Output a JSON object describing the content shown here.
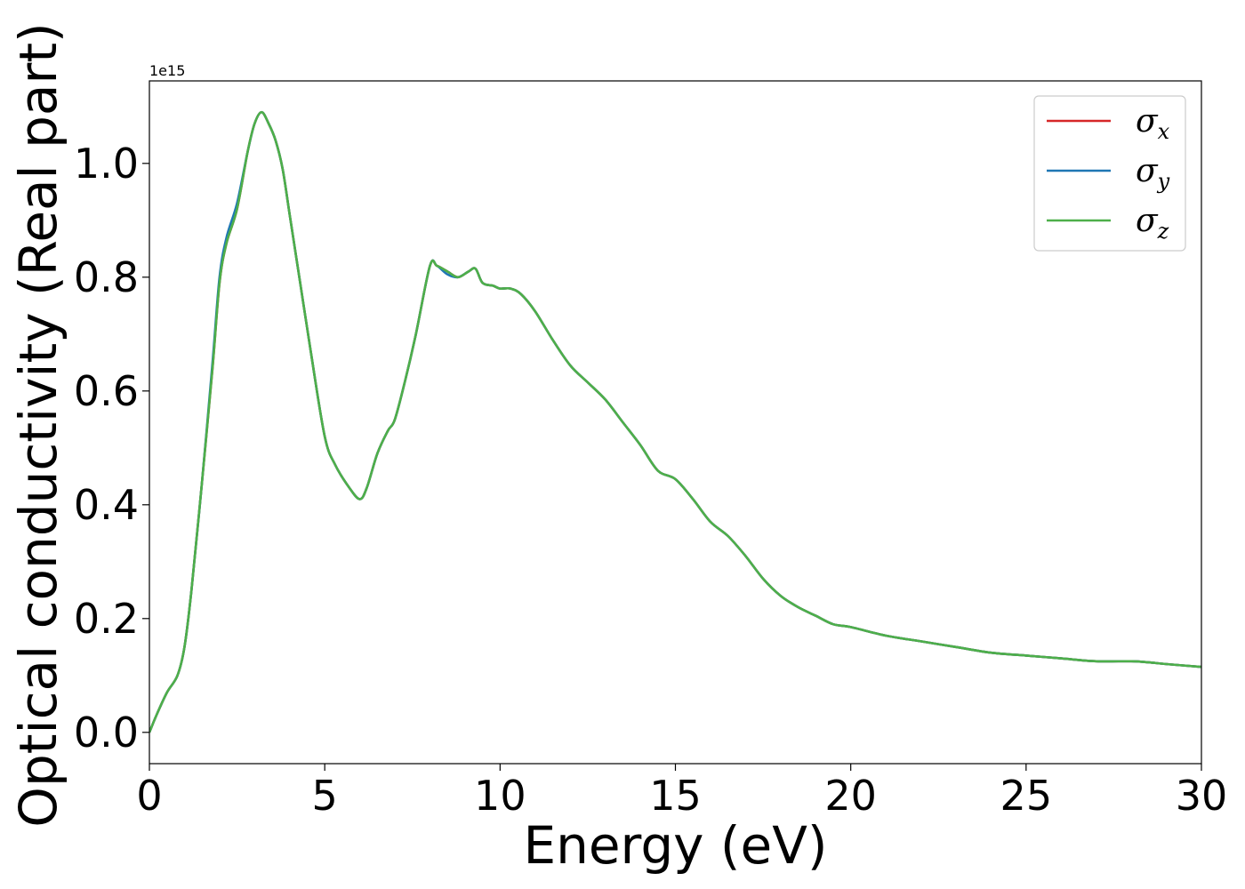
{
  "chart_data": {
    "type": "line",
    "xlabel": "Energy (eV)",
    "ylabel": "Optical conductivity (Real part)",
    "y_offset_label": "1e15",
    "xlim": [
      0,
      30
    ],
    "ylim": [
      -0.055,
      1.145
    ],
    "x_ticks": [
      0,
      5,
      10,
      15,
      20,
      25,
      30
    ],
    "x_tick_labels": [
      "0",
      "5",
      "10",
      "15",
      "20",
      "25",
      "30"
    ],
    "y_ticks": [
      0.0,
      0.2,
      0.4,
      0.6,
      0.8,
      1.0
    ],
    "y_tick_labels": [
      "0.0",
      "0.2",
      "0.4",
      "0.6",
      "0.8",
      "1.0"
    ],
    "grid": false,
    "legend_position": "top-right",
    "x": [
      0,
      0.2,
      0.5,
      0.8,
      1.0,
      1.2,
      1.5,
      1.8,
      2.0,
      2.2,
      2.5,
      2.8,
      3.0,
      3.2,
      3.4,
      3.6,
      3.8,
      4.0,
      4.3,
      4.6,
      5.0,
      5.3,
      5.7,
      6.0,
      6.2,
      6.5,
      6.8,
      7.0,
      7.3,
      7.6,
      8.0,
      8.2,
      8.5,
      8.8,
      9.1,
      9.3,
      9.5,
      9.8,
      10.0,
      10.3,
      10.6,
      11.0,
      11.5,
      12.0,
      12.5,
      13.0,
      13.5,
      14.0,
      14.5,
      15.0,
      15.5,
      16.0,
      16.5,
      17.0,
      17.5,
      18.0,
      18.5,
      19.0,
      19.5,
      20.0,
      21.0,
      22.0,
      23.0,
      24.0,
      25.0,
      26.0,
      27.0,
      28.0,
      28.5,
      29.0,
      30.0
    ],
    "series": [
      {
        "name": "σx",
        "color": "#d62728",
        "values": [
          0.0,
          0.03,
          0.07,
          0.1,
          0.15,
          0.25,
          0.44,
          0.64,
          0.79,
          0.86,
          0.92,
          1.02,
          1.07,
          1.09,
          1.07,
          1.04,
          0.99,
          0.91,
          0.79,
          0.67,
          0.52,
          0.47,
          0.43,
          0.41,
          0.43,
          0.49,
          0.53,
          0.55,
          0.62,
          0.7,
          0.82,
          0.82,
          0.81,
          0.8,
          0.81,
          0.815,
          0.79,
          0.785,
          0.78,
          0.78,
          0.77,
          0.74,
          0.69,
          0.645,
          0.615,
          0.585,
          0.545,
          0.505,
          0.46,
          0.445,
          0.41,
          0.37,
          0.345,
          0.31,
          0.27,
          0.24,
          0.22,
          0.205,
          0.19,
          0.185,
          0.17,
          0.16,
          0.15,
          0.14,
          0.135,
          0.13,
          0.125,
          0.125,
          0.123,
          0.12,
          0.115
        ]
      },
      {
        "name": "σy",
        "color": "#1f77b4",
        "values": [
          0.0,
          0.03,
          0.07,
          0.1,
          0.15,
          0.25,
          0.44,
          0.65,
          0.8,
          0.87,
          0.93,
          1.02,
          1.07,
          1.09,
          1.07,
          1.04,
          0.99,
          0.91,
          0.79,
          0.67,
          0.52,
          0.47,
          0.43,
          0.41,
          0.43,
          0.49,
          0.53,
          0.55,
          0.62,
          0.7,
          0.82,
          0.82,
          0.805,
          0.8,
          0.81,
          0.815,
          0.79,
          0.785,
          0.78,
          0.78,
          0.77,
          0.74,
          0.69,
          0.645,
          0.615,
          0.585,
          0.545,
          0.505,
          0.46,
          0.445,
          0.41,
          0.37,
          0.345,
          0.31,
          0.27,
          0.24,
          0.22,
          0.205,
          0.19,
          0.185,
          0.17,
          0.16,
          0.15,
          0.14,
          0.135,
          0.13,
          0.125,
          0.125,
          0.123,
          0.12,
          0.115
        ]
      },
      {
        "name": "σz",
        "color": "#4daf4a",
        "values": [
          0.0,
          0.03,
          0.07,
          0.1,
          0.15,
          0.25,
          0.44,
          0.64,
          0.79,
          0.86,
          0.92,
          1.02,
          1.07,
          1.09,
          1.07,
          1.04,
          0.99,
          0.91,
          0.79,
          0.67,
          0.52,
          0.47,
          0.43,
          0.41,
          0.43,
          0.49,
          0.53,
          0.55,
          0.62,
          0.7,
          0.82,
          0.82,
          0.81,
          0.8,
          0.81,
          0.815,
          0.79,
          0.785,
          0.78,
          0.78,
          0.77,
          0.74,
          0.69,
          0.645,
          0.615,
          0.585,
          0.545,
          0.505,
          0.46,
          0.445,
          0.41,
          0.37,
          0.345,
          0.31,
          0.27,
          0.24,
          0.22,
          0.205,
          0.19,
          0.185,
          0.17,
          0.16,
          0.15,
          0.14,
          0.135,
          0.13,
          0.125,
          0.125,
          0.123,
          0.12,
          0.115
        ]
      }
    ],
    "legend": {
      "entries": [
        {
          "symbol": "σ",
          "sub": "x"
        },
        {
          "symbol": "σ",
          "sub": "y"
        },
        {
          "symbol": "σ",
          "sub": "z"
        }
      ]
    }
  }
}
